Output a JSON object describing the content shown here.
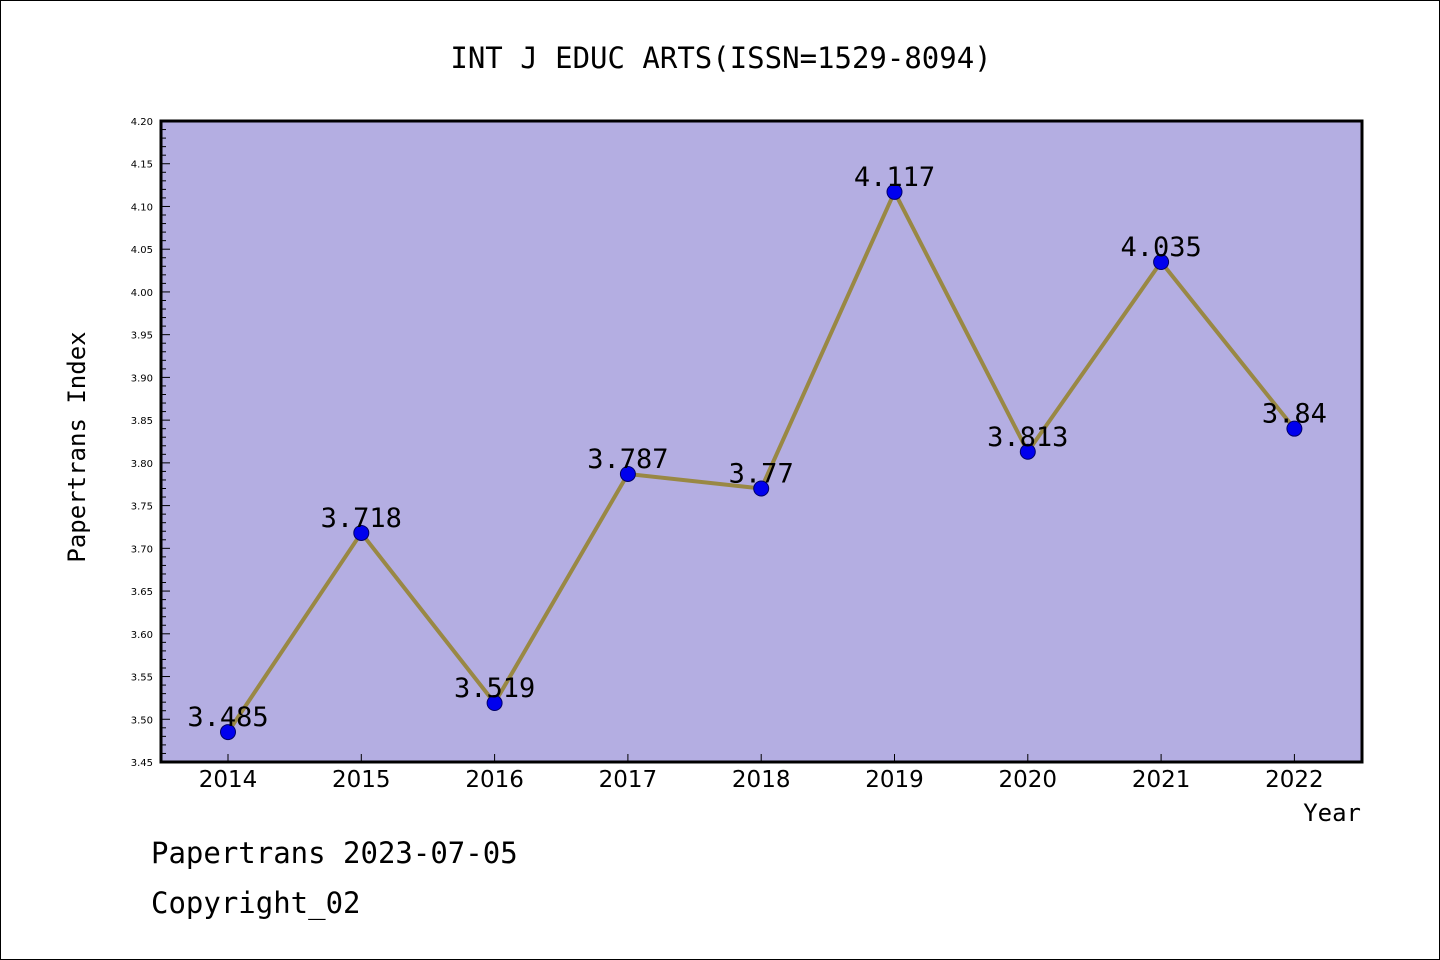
{
  "chart_data": {
    "type": "line",
    "title": "INT J EDUC ARTS(ISSN=1529-8094)",
    "xlabel": "Year",
    "ylabel": "Papertrans Index",
    "categories": [
      "2014",
      "2015",
      "2016",
      "2017",
      "2018",
      "2019",
      "2020",
      "2021",
      "2022"
    ],
    "values": [
      3.485,
      3.718,
      3.519,
      3.787,
      3.77,
      4.117,
      3.813,
      4.035,
      3.84
    ],
    "data_labels": [
      "3.485",
      "3.718",
      "3.519",
      "3.787",
      "3.77",
      "4.117",
      "3.813",
      "4.035",
      "3.84"
    ],
    "ylim": [
      3.45,
      4.2
    ],
    "yticks": [
      "3.45",
      "3.50",
      "3.55",
      "3.60",
      "3.65",
      "3.70",
      "3.75",
      "3.80",
      "3.85",
      "3.90",
      "3.95",
      "4.00",
      "4.05",
      "4.10",
      "4.15",
      "4.20"
    ],
    "grid": false,
    "legend": "none",
    "colors": {
      "plot_background": "#b4aee2",
      "line": "#998844",
      "marker": "#0000ee",
      "marker_edge": "#000066"
    }
  },
  "footer": {
    "date_text": "Papertrans 2023-07-05",
    "copyright_text": "Copyright_02"
  }
}
